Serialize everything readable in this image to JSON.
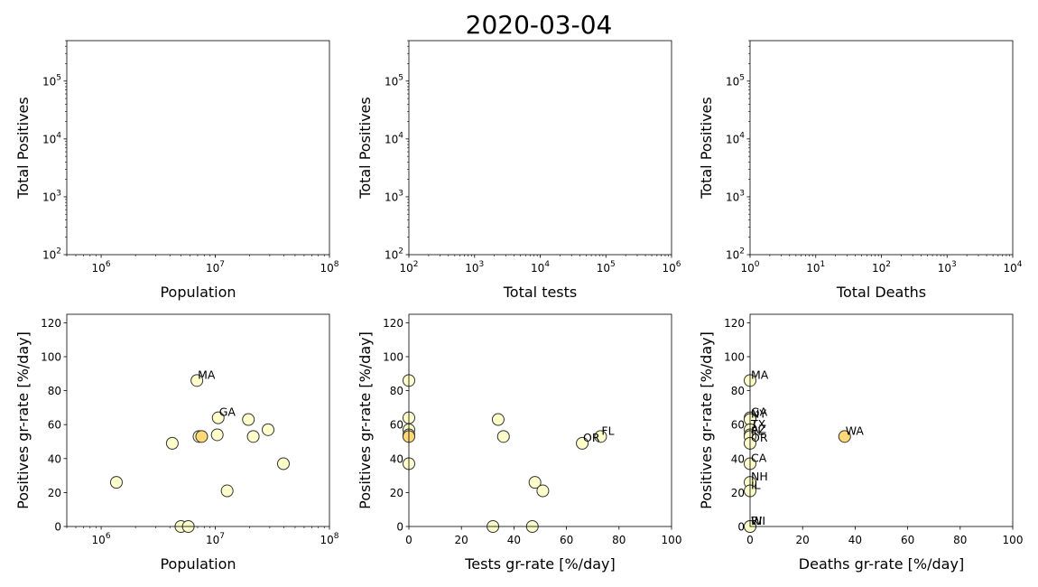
{
  "figure_title": "2020-03-04",
  "colors": {
    "marker_light": "#ffffcc",
    "marker_highlight": "#fed976",
    "marker_edge": "#333333"
  },
  "chart_data": [
    {
      "id": "pop-vs-pos",
      "type": "scatter",
      "xlabel": "Population",
      "ylabel": "Total Positives",
      "xscale": "log",
      "yscale": "log",
      "xlim": [
        500000,
        100000000
      ],
      "ylim": [
        100,
        500000
      ],
      "xticks": [
        1000000,
        10000000,
        100000000
      ],
      "yticks": [
        100,
        1000,
        10000,
        100000
      ],
      "points": []
    },
    {
      "id": "tests-vs-pos",
      "type": "scatter",
      "xlabel": "Total tests",
      "ylabel": "Total Positives",
      "xscale": "log",
      "yscale": "log",
      "xlim": [
        100,
        1000000
      ],
      "ylim": [
        100,
        500000
      ],
      "xticks": [
        100,
        1000,
        10000,
        100000,
        1000000
      ],
      "yticks": [
        100,
        1000,
        10000,
        100000
      ],
      "points": []
    },
    {
      "id": "deaths-vs-pos",
      "type": "scatter",
      "xlabel": "Total Deaths",
      "ylabel": "Total Positives",
      "xscale": "log",
      "yscale": "log",
      "xlim": [
        1,
        10000
      ],
      "ylim": [
        100,
        500000
      ],
      "xticks": [
        1,
        10,
        100,
        1000,
        10000
      ],
      "yticks": [
        100,
        1000,
        10000,
        100000
      ],
      "points": []
    },
    {
      "id": "pop-vs-posrate",
      "type": "scatter",
      "xlabel": "Population",
      "ylabel": "Positives gr-rate [%/day]",
      "xscale": "log",
      "yscale": "linear",
      "xlim": [
        500000,
        100000000
      ],
      "ylim": [
        0,
        125
      ],
      "xticks": [
        1000000,
        10000000,
        100000000
      ],
      "yticks": [
        0,
        20,
        40,
        60,
        80,
        100,
        120
      ],
      "points": [
        {
          "x": 1360000,
          "y": 26,
          "label": ""
        },
        {
          "x": 4200000,
          "y": 49,
          "label": ""
        },
        {
          "x": 6900000,
          "y": 86,
          "label": "MA"
        },
        {
          "x": 7200000,
          "y": 53,
          "label": ""
        },
        {
          "x": 7600000,
          "y": 53,
          "label": "",
          "highlight": true
        },
        {
          "x": 10400000,
          "y": 54,
          "label": ""
        },
        {
          "x": 10600000,
          "y": 64,
          "label": "GA"
        },
        {
          "x": 12700000,
          "y": 21,
          "label": ""
        },
        {
          "x": 19500000,
          "y": 63,
          "label": ""
        },
        {
          "x": 21500000,
          "y": 53,
          "label": ""
        },
        {
          "x": 29000000,
          "y": 57,
          "label": ""
        },
        {
          "x": 39500000,
          "y": 37,
          "label": ""
        },
        {
          "x": 5000000,
          "y": 0,
          "label": ""
        },
        {
          "x": 5800000,
          "y": 0,
          "label": ""
        }
      ]
    },
    {
      "id": "testsrate-vs-posrate",
      "type": "scatter",
      "xlabel": "Tests gr-rate [%/day]",
      "ylabel": "Positives gr-rate [%/day]",
      "xscale": "linear",
      "yscale": "linear",
      "xlim": [
        0,
        100
      ],
      "ylim": [
        0,
        125
      ],
      "xticks": [
        0,
        20,
        40,
        60,
        80,
        100
      ],
      "yticks": [
        0,
        20,
        40,
        60,
        80,
        100,
        120
      ],
      "points": [
        {
          "x": 0,
          "y": 86,
          "label": ""
        },
        {
          "x": 0,
          "y": 64,
          "label": ""
        },
        {
          "x": 0,
          "y": 57,
          "label": ""
        },
        {
          "x": 0,
          "y": 54,
          "label": ""
        },
        {
          "x": 0,
          "y": 53,
          "label": "",
          "highlight": true
        },
        {
          "x": 0,
          "y": 37,
          "label": ""
        },
        {
          "x": 34,
          "y": 63,
          "label": ""
        },
        {
          "x": 36,
          "y": 53,
          "label": ""
        },
        {
          "x": 32,
          "y": 0,
          "label": ""
        },
        {
          "x": 47,
          "y": 0,
          "label": ""
        },
        {
          "x": 48,
          "y": 26,
          "label": ""
        },
        {
          "x": 51,
          "y": 21,
          "label": ""
        },
        {
          "x": 66,
          "y": 49,
          "label": "OR"
        },
        {
          "x": 73,
          "y": 53,
          "label": "FL"
        }
      ]
    },
    {
      "id": "deathsrate-vs-posrate",
      "type": "scatter",
      "xlabel": "Deaths gr-rate [%/day]",
      "ylabel": "Positives gr-rate [%/day]",
      "xscale": "linear",
      "yscale": "linear",
      "xlim": [
        0,
        100
      ],
      "ylim": [
        0,
        125
      ],
      "xticks": [
        0,
        20,
        40,
        60,
        80,
        100
      ],
      "yticks": [
        0,
        20,
        40,
        60,
        80,
        100,
        120
      ],
      "points": [
        {
          "x": 0,
          "y": 86,
          "label": "MA"
        },
        {
          "x": 0,
          "y": 64,
          "label": "GA"
        },
        {
          "x": 0,
          "y": 63,
          "label": "NY"
        },
        {
          "x": 0,
          "y": 57,
          "label": "TX"
        },
        {
          "x": 0,
          "y": 54,
          "label": "AZ"
        },
        {
          "x": 0,
          "y": 53,
          "label": "FL"
        },
        {
          "x": 0,
          "y": 49,
          "label": "OR"
        },
        {
          "x": 0,
          "y": 37,
          "label": "CA"
        },
        {
          "x": 0,
          "y": 26,
          "label": "NH"
        },
        {
          "x": 0,
          "y": 21,
          "label": "IL"
        },
        {
          "x": 0,
          "y": 0,
          "label": "RI"
        },
        {
          "x": 0,
          "y": 0,
          "label": "WI"
        },
        {
          "x": 36,
          "y": 53,
          "label": "WA",
          "highlight": true
        }
      ]
    }
  ]
}
